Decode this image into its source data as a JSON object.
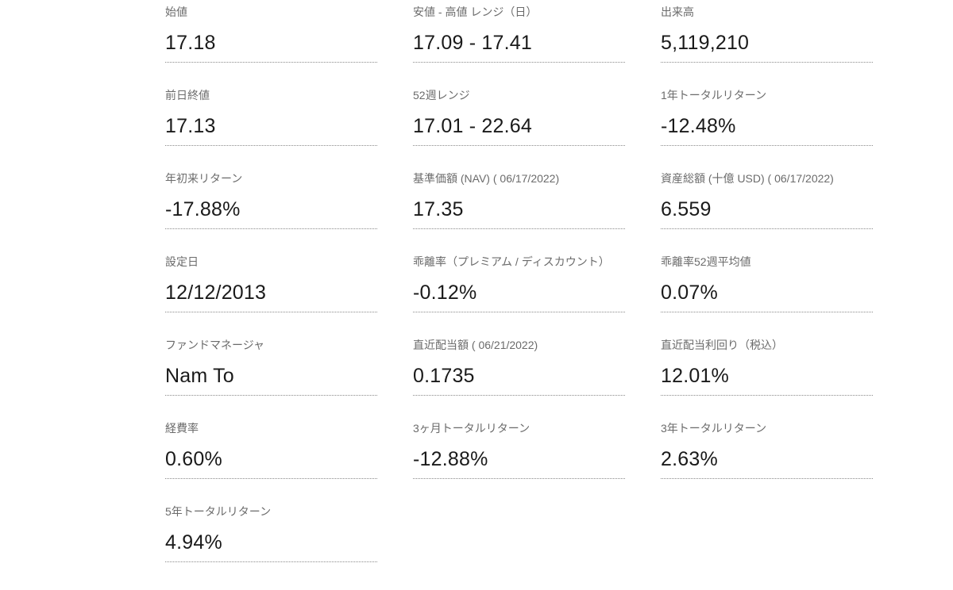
{
  "stats": [
    {
      "label": "始値",
      "value": "17.18"
    },
    {
      "label": "安値 - 高値 レンジ（日）",
      "value": "17.09 - 17.41"
    },
    {
      "label": "出来高",
      "value": "5,119,210"
    },
    {
      "label": "前日終値",
      "value": "17.13"
    },
    {
      "label": "52週レンジ",
      "value": "17.01 - 22.64"
    },
    {
      "label": "1年トータルリターン",
      "value": "-12.48%"
    },
    {
      "label": "年初来リターン",
      "value": "-17.88%"
    },
    {
      "label": "基準価額 (NAV) ( 06/17/2022)",
      "value": "17.35"
    },
    {
      "label": "資産総額 (十億 USD) ( 06/17/2022)",
      "value": "6.559"
    },
    {
      "label": "設定日",
      "value": "12/12/2013"
    },
    {
      "label": "乖離率（プレミアム / ディスカウント）",
      "value": "-0.12%"
    },
    {
      "label": "乖離率52週平均値",
      "value": "0.07%"
    },
    {
      "label": "ファンドマネージャ",
      "value": "Nam To"
    },
    {
      "label": "直近配当額 ( 06/21/2022)",
      "value": "0.1735"
    },
    {
      "label": "直近配当利回り（税込）",
      "value": "12.01%"
    },
    {
      "label": "経費率",
      "value": "0.60%"
    },
    {
      "label": "3ヶ月トータルリターン",
      "value": "-12.88%"
    },
    {
      "label": "3年トータルリターン",
      "value": "2.63%"
    },
    {
      "label": "5年トータルリターン",
      "value": "4.94%"
    }
  ]
}
